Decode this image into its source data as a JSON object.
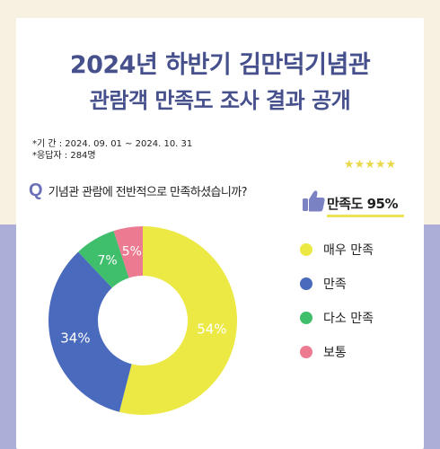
{
  "title_line1": "2024년 하반기 김만덕기념관",
  "title_line2": "관람객 만족도 조사 결과 공개",
  "period": "*기   간 : 2024. 09. 01 ~ 2024. 10. 31",
  "respondents": "*응답자 : 284명",
  "question_mark": "Q",
  "question": "기념관 관람에 전반적으로 만족하셨습니까?",
  "stars": "★★★★★",
  "satisfaction": "만족도 95%",
  "colors": {
    "accent": "#46508c",
    "very_satisfied": "#ece844",
    "satisfied": "#4a6bbd",
    "somewhat_satisfied": "#3fbe6b",
    "neutral": "#ec7a90"
  },
  "chart_data": {
    "type": "pie",
    "title": "기념관 관람에 전반적으로 만족하셨습니까?",
    "categories": [
      "매우 만족",
      "만족",
      "다소 만족",
      "보통"
    ],
    "values": [
      54,
      34,
      7,
      5
    ],
    "labels": [
      "54%",
      "34%",
      "7%",
      "5%"
    ],
    "colors": [
      "#ece844",
      "#4a6bbd",
      "#3fbe6b",
      "#ec7a90"
    ],
    "legend_position": "right",
    "donut": true
  }
}
